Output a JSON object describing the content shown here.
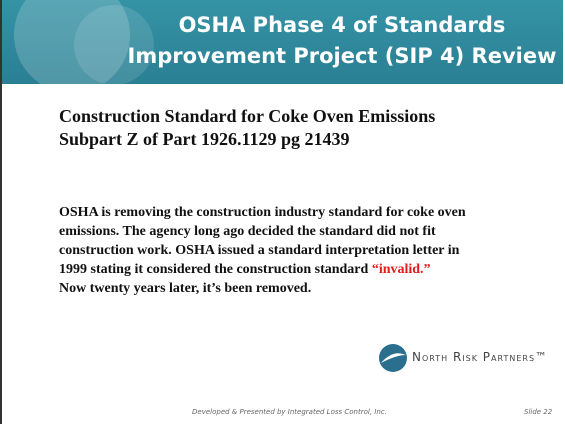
{
  "header": {
    "title": [
      "OSHA Phase 4 of Standards",
      "Improvement Project (SIP 4) Review"
    ]
  },
  "heading": [
    "Construction Standard for Coke Oven Emissions",
    "Subpart Z of Part 1926.1129 pg 21439"
  ],
  "paragraph": {
    "lines": [
      "OSHA is removing the construction industry standard for coke oven",
      "emissions. The agency long ago decided the standard did not fit",
      "construction work. OSHA issued a standard interpretation letter in"
    ],
    "highlight_line": {
      "text": "1999 stating it considered the construction standard ",
      "highlight": "“invalid.”"
    },
    "last_line": "Now twenty years later, it’s been removed."
  },
  "logo": {
    "name": "North Risk Partners™"
  },
  "footer": {
    "credit": "Developed & Presented by Integrated Loss Control, Inc.",
    "slide": "Slide 22"
  }
}
